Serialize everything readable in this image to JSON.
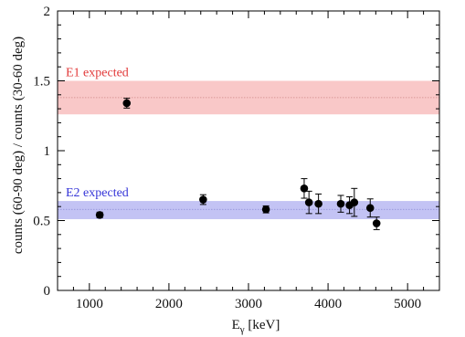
{
  "chart_data": {
    "type": "scatter",
    "title": "",
    "xlabel_main": "E",
    "xlabel_sub": "γ",
    "xlabel_unit": " [keV]",
    "ylabel": "counts (60-90 deg) / counts (30-60 deg)",
    "xlim": [
      600,
      5400
    ],
    "ylim": [
      0,
      2
    ],
    "x_major_ticks": [
      1000,
      2000,
      3000,
      4000,
      5000
    ],
    "x_tick_labels": [
      "1000",
      "2000",
      "3000",
      "4000",
      "5000"
    ],
    "y_major_ticks": [
      0,
      0.5,
      1,
      1.5,
      2
    ],
    "y_tick_labels": [
      "0",
      "0.5",
      "1",
      "1.5",
      "2"
    ],
    "grid": false,
    "bands": [
      {
        "label": "E1 expected",
        "center": 1.38,
        "low": 1.26,
        "high": 1.5,
        "fill": "#f9c8c8",
        "line": "#d08a8a",
        "text_color": "#e23a3a"
      },
      {
        "label": "E2 expected",
        "center": 0.58,
        "low": 0.51,
        "high": 0.64,
        "fill": "#c3c3f4",
        "line": "#8a8ad4",
        "text_color": "#3535d8"
      }
    ],
    "series": [
      {
        "color": "#000000",
        "points": [
          {
            "x": 1130,
            "y": 0.54,
            "err": 0.02
          },
          {
            "x": 1470,
            "y": 1.34,
            "err": 0.035
          },
          {
            "x": 2430,
            "y": 0.65,
            "err": 0.035
          },
          {
            "x": 3220,
            "y": 0.58,
            "err": 0.025
          },
          {
            "x": 3700,
            "y": 0.73,
            "err": 0.07
          },
          {
            "x": 3760,
            "y": 0.63,
            "err": 0.08
          },
          {
            "x": 3880,
            "y": 0.62,
            "err": 0.07
          },
          {
            "x": 4160,
            "y": 0.62,
            "err": 0.06
          },
          {
            "x": 4270,
            "y": 0.61,
            "err": 0.06
          },
          {
            "x": 4330,
            "y": 0.63,
            "err": 0.1
          },
          {
            "x": 4530,
            "y": 0.59,
            "err": 0.065
          },
          {
            "x": 4610,
            "y": 0.48,
            "err": 0.045
          }
        ]
      }
    ]
  }
}
